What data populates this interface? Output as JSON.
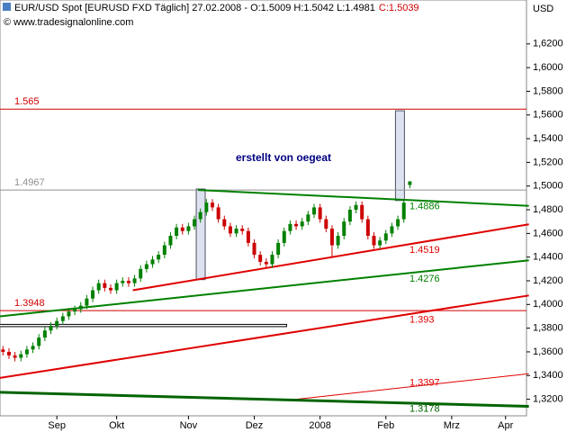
{
  "chart_data": {
    "type": "candlestick",
    "header": "EUR/USD Spot [EURUSD FXD  Täglich] 27.02.2008 - O:1.5009 H:1.5042 L:1.4981",
    "header_close": "C:1.5039",
    "copyright": "© www.tradesignalonline.com",
    "annotation": "erstellt von oegeat",
    "y_unit": "USD",
    "up_color": "#008000",
    "down_color": "#cc0000",
    "categories": [
      null,
      null,
      null,
      null,
      null,
      null,
      null,
      null,
      null,
      "Sep",
      null,
      null,
      null,
      null,
      null,
      null,
      null,
      null,
      null,
      "Okt",
      null,
      null,
      null,
      null,
      null,
      null,
      null,
      null,
      null,
      null,
      null,
      "Nov",
      null,
      null,
      null,
      null,
      null,
      null,
      null,
      null,
      null,
      null,
      "Dez",
      null,
      null,
      null,
      null,
      null,
      null,
      null,
      null,
      null,
      null,
      "2008",
      null,
      null,
      null,
      null,
      null,
      null,
      null,
      null,
      null,
      null,
      "Feb",
      null,
      null,
      null,
      null,
      null,
      null,
      null,
      null,
      null,
      null,
      "Mrz",
      null,
      null,
      null,
      null,
      null,
      null,
      null,
      null,
      "Apr",
      null,
      null,
      null
    ],
    "open": [
      1.362,
      1.36,
      1.357,
      1.355,
      1.358,
      1.362,
      1.365,
      1.372,
      1.378,
      1.382,
      1.386,
      1.39,
      1.394,
      1.396,
      1.399,
      1.405,
      1.412,
      1.418,
      1.414,
      1.412,
      1.418,
      1.42,
      1.418,
      1.422,
      1.43,
      1.434,
      1.438,
      1.442,
      1.45,
      1.458,
      1.465,
      1.462,
      1.466,
      1.472,
      1.478,
      1.486,
      1.482,
      1.472,
      1.466,
      1.46,
      1.464,
      1.462,
      1.452,
      1.442,
      1.436,
      1.434,
      1.442,
      1.452,
      1.462,
      1.468,
      1.466,
      1.47,
      1.476,
      1.482,
      1.472,
      1.464,
      1.45,
      1.458,
      1.47,
      1.48,
      1.484,
      1.472,
      1.458,
      1.45,
      1.454,
      1.46,
      1.466,
      1.472,
      1.5009,
      null,
      null,
      null,
      null,
      null,
      null,
      null,
      null,
      null,
      null,
      null,
      null,
      null,
      null,
      null,
      null,
      null,
      null,
      null
    ],
    "high": [
      1.365,
      1.363,
      1.36,
      1.361,
      1.365,
      1.368,
      1.375,
      1.381,
      1.385,
      1.389,
      1.393,
      1.397,
      1.399,
      1.402,
      1.408,
      1.415,
      1.421,
      1.421,
      1.417,
      1.421,
      1.423,
      1.423,
      1.425,
      1.433,
      1.437,
      1.441,
      1.445,
      1.453,
      1.461,
      1.468,
      1.468,
      1.469,
      1.475,
      1.481,
      1.489,
      1.489,
      1.485,
      1.475,
      1.469,
      1.467,
      1.467,
      1.465,
      1.455,
      1.445,
      1.439,
      1.445,
      1.455,
      1.465,
      1.471,
      1.471,
      1.473,
      1.479,
      1.485,
      1.485,
      1.475,
      1.467,
      1.461,
      1.473,
      1.483,
      1.487,
      1.487,
      1.475,
      1.461,
      1.457,
      1.463,
      1.469,
      1.475,
      1.489,
      1.5042,
      null,
      null,
      null,
      null,
      null,
      null,
      null,
      null,
      null,
      null,
      null,
      null,
      null,
      null,
      null,
      null,
      null,
      null,
      null
    ],
    "low": [
      1.357,
      1.354,
      1.352,
      1.352,
      1.355,
      1.359,
      1.362,
      1.369,
      1.375,
      1.379,
      1.383,
      1.387,
      1.391,
      1.393,
      1.396,
      1.402,
      1.409,
      1.411,
      1.409,
      1.409,
      1.415,
      1.415,
      1.415,
      1.419,
      1.427,
      1.431,
      1.435,
      1.439,
      1.447,
      1.455,
      1.459,
      1.459,
      1.463,
      1.469,
      1.475,
      1.479,
      1.469,
      1.463,
      1.457,
      1.457,
      1.459,
      1.449,
      1.439,
      1.433,
      1.431,
      1.431,
      1.439,
      1.449,
      1.459,
      1.463,
      1.463,
      1.467,
      1.473,
      1.469,
      1.461,
      1.44,
      1.447,
      1.455,
      1.467,
      1.477,
      1.469,
      1.455,
      1.447,
      1.447,
      1.451,
      1.457,
      1.463,
      1.469,
      1.4981,
      null,
      null,
      null,
      null,
      null,
      null,
      null,
      null,
      null,
      null,
      null,
      null,
      null,
      null,
      null,
      null,
      null,
      null,
      null
    ],
    "close": [
      1.36,
      1.357,
      1.355,
      1.358,
      1.362,
      1.365,
      1.372,
      1.378,
      1.382,
      1.386,
      1.39,
      1.394,
      1.396,
      1.399,
      1.405,
      1.412,
      1.418,
      1.414,
      1.412,
      1.418,
      1.42,
      1.418,
      1.422,
      1.43,
      1.434,
      1.438,
      1.442,
      1.45,
      1.458,
      1.465,
      1.462,
      1.466,
      1.472,
      1.478,
      1.486,
      1.482,
      1.472,
      1.466,
      1.46,
      1.464,
      1.462,
      1.452,
      1.442,
      1.436,
      1.434,
      1.442,
      1.452,
      1.462,
      1.468,
      1.466,
      1.47,
      1.476,
      1.482,
      1.472,
      1.464,
      1.45,
      1.458,
      1.47,
      1.48,
      1.484,
      1.472,
      1.458,
      1.45,
      1.454,
      1.46,
      1.466,
      1.472,
      1.486,
      1.5039,
      null,
      null,
      null,
      null,
      null,
      null,
      null,
      null,
      null,
      null,
      null,
      null,
      null,
      null,
      null,
      null,
      null,
      null,
      null
    ],
    "ylim": [
      1.306,
      1.6571
    ],
    "yticks": [
      {
        "value": 1.32,
        "label": "1,3200"
      },
      {
        "value": 1.34,
        "label": "1,3400"
      },
      {
        "value": 1.36,
        "label": "1,3600"
      },
      {
        "value": 1.38,
        "label": "1,3800"
      },
      {
        "value": 1.4,
        "label": "1,4000"
      },
      {
        "value": 1.42,
        "label": "1,4200"
      },
      {
        "value": 1.44,
        "label": "1,4400"
      },
      {
        "value": 1.46,
        "label": "1,4600"
      },
      {
        "value": 1.48,
        "label": "1,4800"
      },
      {
        "value": 1.5,
        "label": "1,5000"
      },
      {
        "value": 1.52,
        "label": "1,5200"
      },
      {
        "value": 1.54,
        "label": "1,5400"
      },
      {
        "value": 1.56,
        "label": "1,5600"
      },
      {
        "value": 1.58,
        "label": "1,5800"
      },
      {
        "value": 1.6,
        "label": "1,6000"
      },
      {
        "value": 1.62,
        "label": "1,6200"
      }
    ],
    "levels": [
      {
        "value": 1.565,
        "color": "#d00000"
      },
      {
        "value": 1.4967,
        "color": "#909090"
      },
      {
        "value": 1.3948,
        "color": "#d00000"
      }
    ],
    "trendlines": [
      {
        "value": 1.4886,
        "color": "#008000",
        "width": 2,
        "points": [
          [
            32.6,
            1.4967
          ],
          [
            87.9,
            1.4833
          ]
        ]
      },
      {
        "value": 1.4519,
        "color": "#e00000",
        "width": 2,
        "points": [
          [
            21.7,
            1.412
          ],
          [
            87.9,
            1.4677
          ]
        ]
      },
      {
        "value": 1.4276,
        "color": "#008000",
        "width": 2,
        "points": [
          [
            -0.76,
            1.3898
          ],
          [
            87.9,
            1.4373
          ]
        ]
      },
      {
        "value": 1.393,
        "color": "#e00000",
        "width": 2,
        "points": [
          [
            -0.76,
            1.3378
          ],
          [
            87.9,
            1.4076
          ]
        ]
      },
      {
        "value": 1.3397,
        "color": "#e00000",
        "width": 1,
        "points": [
          [
            47.7,
            1.3192
          ],
          [
            87.9,
            1.3415
          ]
        ]
      },
      {
        "value": 1.3178,
        "color": "#006400",
        "width": 3,
        "points": [
          [
            -0.76,
            1.3259
          ],
          [
            87.9,
            1.314
          ]
        ]
      }
    ],
    "boxes": [
      {
        "color": "#dde2f0",
        "stroke": "#505060",
        "points": [
          [
            32.3,
            1.4975
          ],
          [
            33.8,
            1.421
          ]
        ]
      },
      {
        "color": "#dde2f0",
        "stroke": "#505060",
        "points": [
          [
            65.6,
            1.5636
          ],
          [
            67.1,
            1.4878
          ]
        ]
      },
      {
        "color": "#ffffff",
        "stroke": "#000000",
        "points": [
          [
            -0.76,
            1.3832
          ],
          [
            47.4,
            1.3813
          ]
        ]
      }
    ]
  }
}
